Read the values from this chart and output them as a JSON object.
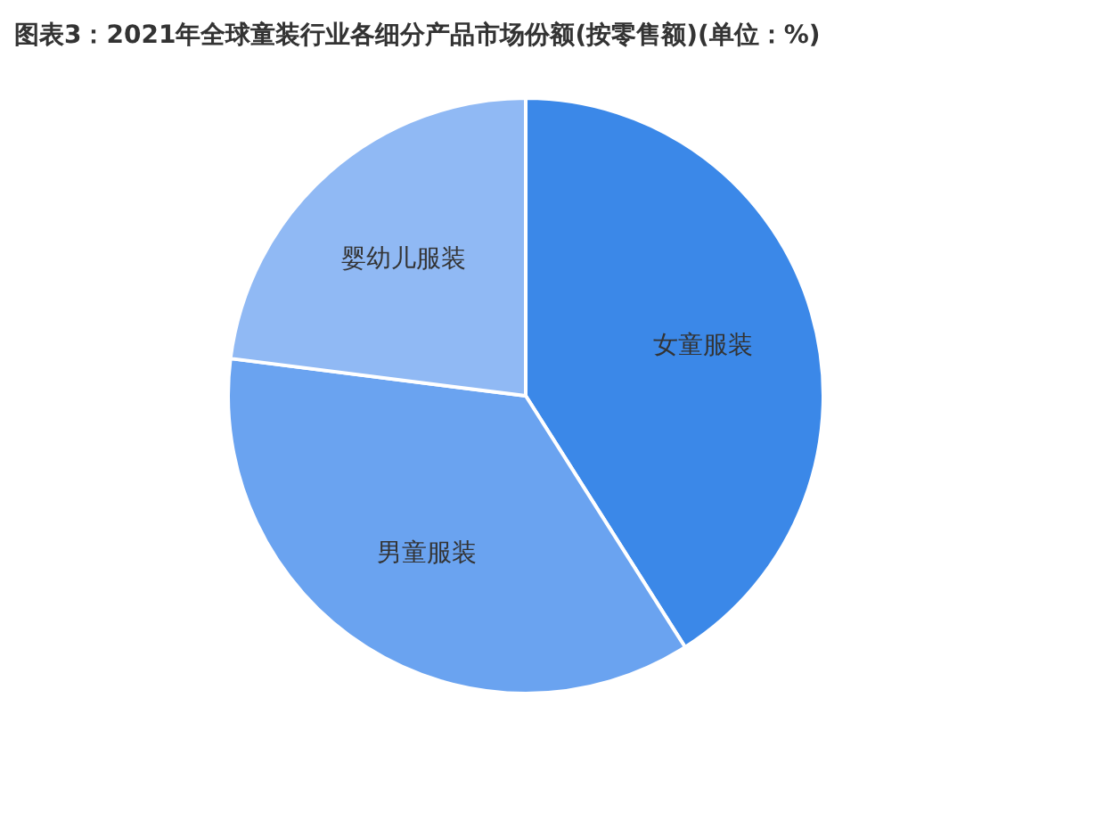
{
  "chart_data": {
    "type": "pie",
    "title": "图表3：2021年全球童装行业各细分产品市场份额(按零售额)(单位：%)",
    "categories": [
      "女童服装",
      "男童服装",
      "婴幼儿服装"
    ],
    "values": [
      41,
      36,
      23
    ],
    "colors": [
      "#3b88e8",
      "#6aa3f0",
      "#90b9f4"
    ]
  }
}
